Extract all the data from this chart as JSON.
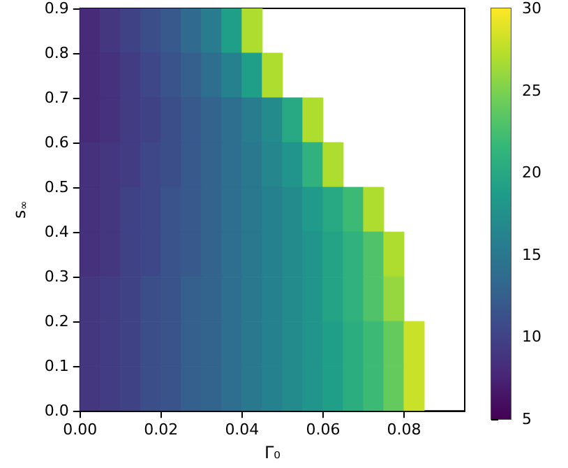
{
  "chart_data": {
    "type": "heatmap",
    "xlabel": "Γ₀",
    "ylabel": "s$_{∞}$",
    "x": [
      0.0025,
      0.0075,
      0.0125,
      0.0175,
      0.0225,
      0.0275,
      0.0325,
      0.0375,
      0.0425,
      0.0475,
      0.0525,
      0.0575,
      0.0625,
      0.0675,
      0.0725,
      0.0775,
      0.0825
    ],
    "y": [
      0.85,
      0.75,
      0.65,
      0.55,
      0.45,
      0.35,
      0.25,
      0.15,
      0.05
    ],
    "cells": [
      [
        8,
        9,
        10,
        11,
        12,
        13.5,
        15.5,
        19,
        27,
        null,
        null,
        null,
        null,
        null,
        null,
        null,
        null
      ],
      [
        8,
        8.5,
        9.5,
        10.5,
        11.5,
        12.5,
        14,
        16,
        19,
        27,
        null,
        null,
        null,
        null,
        null,
        null,
        null
      ],
      [
        8,
        8.5,
        9.5,
        10,
        11,
        12,
        13,
        14,
        15.5,
        17,
        20,
        27,
        null,
        null,
        null,
        null,
        null
      ],
      [
        8.5,
        9,
        9.5,
        10.5,
        11,
        12,
        13,
        14,
        15,
        16.5,
        18,
        21,
        27,
        null,
        null,
        null,
        null
      ],
      [
        8.5,
        9,
        10,
        10.5,
        11.5,
        12,
        13,
        14,
        15,
        16,
        17,
        18.5,
        20,
        22,
        27,
        null,
        null
      ],
      [
        8.5,
        9,
        10,
        10.5,
        11.5,
        12,
        13,
        14,
        15,
        16,
        17,
        18,
        19.5,
        21,
        23,
        27,
        null
      ],
      [
        9,
        9.5,
        10,
        11,
        11.5,
        12.5,
        13,
        14,
        15,
        16,
        17,
        18,
        19.5,
        21,
        23,
        26,
        null
      ],
      [
        9,
        9.5,
        10,
        11,
        11.5,
        12.5,
        13,
        14,
        15,
        16,
        17,
        18,
        19,
        20.5,
        22,
        24,
        28
      ],
      [
        9,
        9.5,
        10,
        11,
        11.5,
        12.5,
        13,
        14,
        15,
        16,
        17,
        18,
        19,
        20.5,
        22,
        24,
        28
      ]
    ],
    "xlim": [
      0,
      0.095
    ],
    "xticks": [
      {
        "value": 0,
        "label": "0.00"
      },
      {
        "value": 0.02,
        "label": "0.02"
      },
      {
        "value": 0.04,
        "label": "0.04"
      },
      {
        "value": 0.06,
        "label": "0.06"
      },
      {
        "value": 0.08,
        "label": "0.08"
      }
    ],
    "ylim": [
      0,
      0.9
    ],
    "yticks": [
      {
        "value": 0,
        "label": "0.0"
      },
      {
        "value": 0.1,
        "label": "0.1"
      },
      {
        "value": 0.2,
        "label": "0.2"
      },
      {
        "value": 0.3,
        "label": "0.3"
      },
      {
        "value": 0.4,
        "label": "0.4"
      },
      {
        "value": 0.5,
        "label": "0.5"
      },
      {
        "value": 0.6,
        "label": "0.6"
      },
      {
        "value": 0.7,
        "label": "0.7"
      },
      {
        "value": 0.8,
        "label": "0.8"
      },
      {
        "value": 0.9,
        "label": "0.9"
      }
    ],
    "clim": [
      5,
      30
    ],
    "cticks": [
      5,
      10,
      15,
      20,
      25,
      30
    ]
  }
}
